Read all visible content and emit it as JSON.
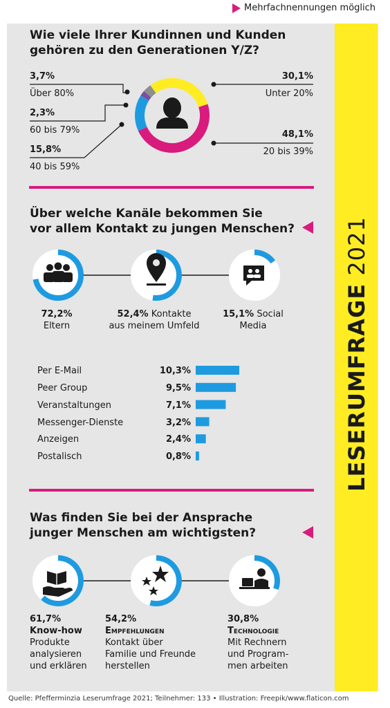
{
  "note": "Mehrfachnennungen möglich",
  "sidebar_title": {
    "bold": "LESERUMFRAGE",
    "regular": "2021"
  },
  "colors": {
    "magenta": "#d81b7d",
    "yellow": "#ffec22",
    "blue": "#1e9be0",
    "gray": "#8e8e8e",
    "purple": "#7a4fa0",
    "bg": "#e6e6e6"
  },
  "section1": {
    "title_line1": "Wie viele Ihrer Kundinnen und Kunden",
    "title_line2": "gehören zu den Generationen Y/Z?"
  },
  "section2": {
    "title_line1": "Über welche Kanäle bekommen Sie",
    "title_line2": "vor allem Kontakt zu jungen Menschen?",
    "circles": [
      {
        "icon": "group-icon",
        "pct": "72,2%",
        "label1": "Eltern",
        "label2": "",
        "value": 72.2
      },
      {
        "icon": "location-pin-icon",
        "pct": "52,4%",
        "label1": "Kontakte",
        "label2": "aus meinem Umfeld",
        "value": 52.4
      },
      {
        "icon": "social-media-icon",
        "pct": "15,1%",
        "label1": "Social",
        "label2": "Media",
        "value": 15.1
      }
    ]
  },
  "section3": {
    "title_line1": "Was finden Sie bei der Ansprache",
    "title_line2": "junger Menschen am wichtigsten?",
    "circles": [
      {
        "icon": "book-hand-icon",
        "pct": "61,7%",
        "title": "Know-how",
        "lines": [
          "Produkte",
          "analysieren",
          "und erklären"
        ],
        "value": 61.7
      },
      {
        "icon": "stars-icon",
        "pct": "54,2%",
        "title": "Empfehlungen",
        "lines": [
          "Kontakt über",
          "Familie und Freunde",
          "herstellen"
        ],
        "value": 54.2
      },
      {
        "icon": "computer-user-icon",
        "pct": "30,8%",
        "title": "Technologie",
        "lines": [
          "Mit Rechnern",
          "und Program-",
          "men arbeiten"
        ],
        "value": 30.8
      }
    ]
  },
  "source": "Quelle: Pfefferminzia Leserumfrage 2021; Teilnehmer: 133 • Illustration: Freepik/www.flaticon.com",
  "chart_data": [
    {
      "type": "pie",
      "title": "Wie viele Ihrer Kundinnen und Kunden gehören zu den Generationen Y/Z?",
      "slices": [
        {
          "label": "Unter 20%",
          "value": 30.1,
          "display": "30,1%",
          "color": "#ffec22"
        },
        {
          "label": "20 bis 39%",
          "value": 48.1,
          "display": "48,1%",
          "color": "#d81b7d"
        },
        {
          "label": "40 bis 59%",
          "value": 15.8,
          "display": "15,8%",
          "color": "#1e9be0"
        },
        {
          "label": "60 bis 79%",
          "value": 2.3,
          "display": "2,3%",
          "color": "#7a4fa0"
        },
        {
          "label": "Über 80%",
          "value": 3.7,
          "display": "3,7%",
          "color": "#8e8e8e"
        }
      ]
    },
    {
      "type": "bar",
      "orientation": "horizontal",
      "categories": [
        "Per E-Mail",
        "Peer Group",
        "Veranstaltungen",
        "Messenger-Dienste",
        "Anzeigen",
        "Postalisch"
      ],
      "values": [
        10.3,
        9.5,
        7.1,
        3.2,
        2.4,
        0.8
      ],
      "labels": [
        "10,3%",
        "9,5%",
        "7,1%",
        "3,2%",
        "2,4%",
        "0,8%"
      ],
      "color": "#1e9be0"
    }
  ]
}
